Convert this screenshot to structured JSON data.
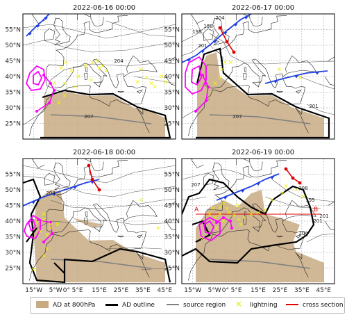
{
  "panels": [
    {
      "title": "2022-06-16 00:00",
      "contour_labels": [
        "204",
        "207"
      ]
    },
    {
      "title": "2022-06-17 00:00",
      "contour_labels": [
        "195",
        "198",
        "201",
        "204",
        "207",
        "201"
      ]
    },
    {
      "title": "2022-06-18 00:00",
      "contour_labels": [
        "204"
      ]
    },
    {
      "title": "2022-06-19 00:00",
      "contour_labels": [
        "195",
        "198",
        "201",
        "207",
        "201",
        "204"
      ],
      "cross_section_labels": [
        "A",
        "B"
      ]
    }
  ],
  "axes": {
    "lat_ticks": [
      "55°N",
      "50°N",
      "45°N",
      "40°N",
      "35°N",
      "30°N",
      "25°N"
    ],
    "lon_ticks": [
      "15°W",
      "5°W",
      "0°",
      "5°E",
      "15°E",
      "25°E",
      "35°E",
      "45°E"
    ]
  },
  "legend": [
    {
      "label": "AD at 800hPa",
      "icon": "filled-patch",
      "color": "#c8aa82"
    },
    {
      "label": "AD outline",
      "icon": "thick-line",
      "color": "#000000"
    },
    {
      "label": "source region",
      "icon": "line",
      "color": "#808080"
    },
    {
      "label": "lightning",
      "icon": "x-marker",
      "color": "#ffff00"
    },
    {
      "label": "cross section",
      "icon": "line",
      "color": "#e00000"
    }
  ],
  "colors": {
    "dust": "#c8aa82",
    "outline": "#000000",
    "source": "#808080",
    "lightning": "#ffff00",
    "cross": "#e00000",
    "cold_front": "#1f3fe0",
    "cutoff_low": "#ff00ff",
    "land_line": "#222222",
    "grid": "#999999"
  }
}
